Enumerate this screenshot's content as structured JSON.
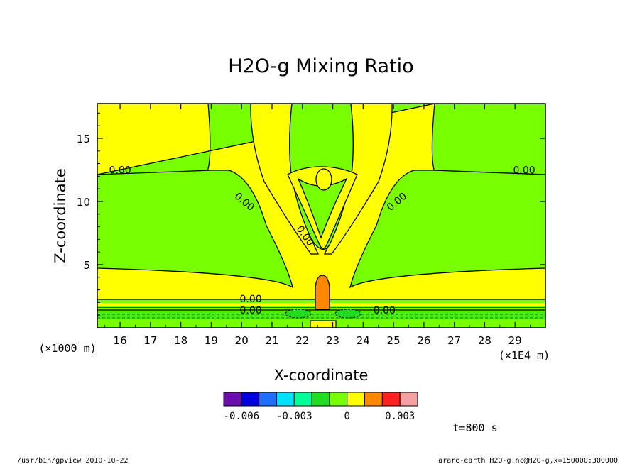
{
  "chart_data": {
    "type": "contour",
    "title": "H2O-g Mixing Ratio",
    "xlabel": "X-coordinate",
    "ylabel": "Z-coordinate",
    "x_unit_label": "(×1E4 m)",
    "y_unit_label": "(×1000 m)",
    "xlim": [
      15.25,
      30.0
    ],
    "ylim": [
      0.0,
      17.75
    ],
    "x_ticks": [
      16,
      17,
      18,
      19,
      20,
      21,
      22,
      23,
      24,
      25,
      26,
      27,
      28,
      29
    ],
    "x_tick_labels": [
      "16",
      "17",
      "18",
      "19",
      "20",
      "21",
      "22",
      "23",
      "24",
      "25",
      "26",
      "27",
      "28",
      "29"
    ],
    "y_ticks": [
      5,
      10,
      15
    ],
    "y_tick_labels": [
      "5",
      "10",
      "15"
    ],
    "contour_labels": [
      {
        "text": "0.00",
        "x": 16.0,
        "y": 12.5,
        "rotation": 0
      },
      {
        "text": "0.00",
        "x": 29.3,
        "y": 12.5,
        "rotation": 0
      },
      {
        "text": "0.00",
        "x": 20.1,
        "y": 10.0,
        "rotation": 40
      },
      {
        "text": "0.00",
        "x": 25.1,
        "y": 10.0,
        "rotation": -40
      },
      {
        "text": "0.00",
        "x": 22.1,
        "y": 7.3,
        "rotation": 55
      },
      {
        "text": "0.00",
        "x": 20.3,
        "y": 2.3,
        "rotation": 0
      },
      {
        "text": "0.00",
        "x": 20.3,
        "y": 1.4,
        "rotation": 0
      },
      {
        "text": "0.00",
        "x": 24.7,
        "y": 1.4,
        "rotation": 0
      }
    ],
    "colorbar": {
      "colors": [
        "#6a0dad",
        "#0000dd",
        "#1f6fff",
        "#00e0ff",
        "#00ff99",
        "#20dd20",
        "#77ff00",
        "#ffff00",
        "#ff8800",
        "#ff2020",
        "#f5a0a0"
      ],
      "tick_labels": [
        "-0.006",
        "-0.003",
        "0",
        "0.003"
      ]
    },
    "time_label": "t=800 s"
  },
  "footer": {
    "left": "/usr/bin/gpview  2010-10-22",
    "right": "arare-earth_H2O-g.nc@H2O-g,x=150000:300000"
  }
}
